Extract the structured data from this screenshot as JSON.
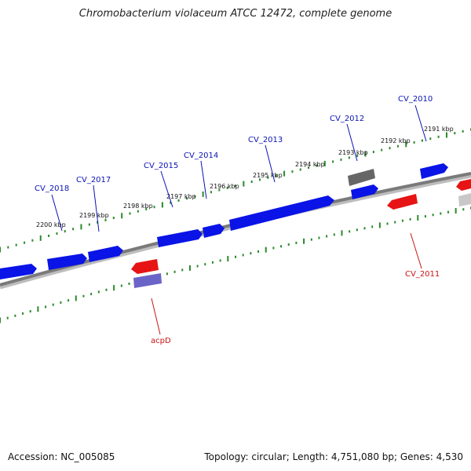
{
  "title": "Chromobacterium violaceum ATCC 12472, complete genome",
  "footer": {
    "accession": "Accession: NC_005085",
    "summary": "Topology: circular; Length: 4,751,080 bp; Genes: 4,530"
  },
  "colors": {
    "forward_gene": "#0a14e6",
    "reverse_gene": "#e61414",
    "rna_gene": "#6a64c8",
    "pseudo_gene": "#666666",
    "backbone": "#7a7a7a",
    "tick": "#2a8a2a",
    "forward_label": "#0a14b4",
    "reverse_label": "#c81414"
  },
  "kbp_ticks": [
    "2200 kbp",
    "2199 kbp",
    "2198 kbp",
    "2197 kbp",
    "2196 kbp",
    "2195 kbp",
    "2194 kbp",
    "2193 kbp",
    "2192 kbp",
    "2191 kbp"
  ],
  "gene_labels": {
    "forward": [
      "CV_2018",
      "CV_2017",
      "CV_2015",
      "CV_2014",
      "CV_2013",
      "CV_2012",
      "CV_2010"
    ],
    "reverse": [
      "acpD",
      "CV_2011"
    ]
  }
}
